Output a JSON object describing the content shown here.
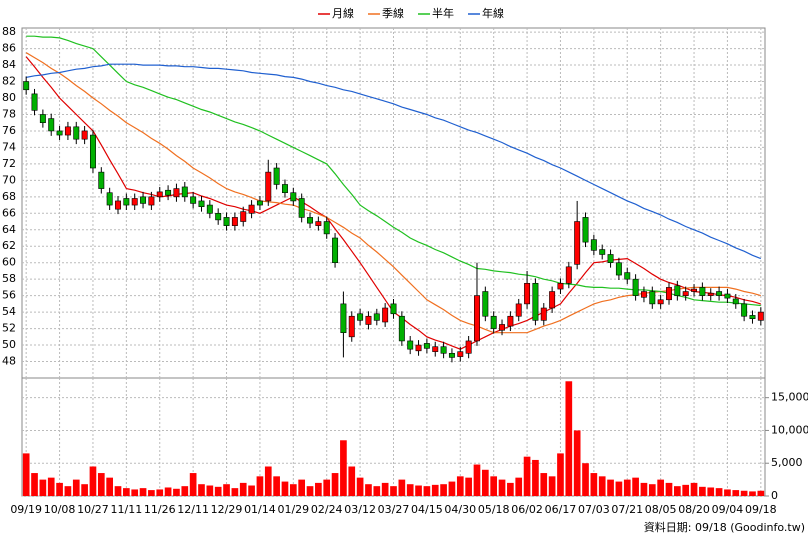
{
  "chart_data": {
    "type": "candlestick",
    "categories": [
      "09/19",
      null,
      null,
      null,
      "10/08",
      null,
      null,
      null,
      "10/27",
      null,
      null,
      null,
      "11/11",
      null,
      null,
      null,
      "11/26",
      null,
      null,
      null,
      "12/11",
      null,
      null,
      null,
      "12/29",
      null,
      null,
      null,
      "01/14",
      null,
      null,
      null,
      "01/29",
      null,
      null,
      null,
      "02/24",
      null,
      null,
      null,
      "03/12",
      null,
      null,
      null,
      "03/27",
      null,
      null,
      null,
      "04/15",
      null,
      null,
      null,
      "04/30",
      null,
      null,
      null,
      "05/18",
      null,
      null,
      null,
      "06/02",
      null,
      null,
      null,
      "06/17",
      null,
      null,
      null,
      "07/03",
      null,
      null,
      null,
      "07/21",
      null,
      null,
      null,
      "08/05",
      null,
      null,
      null,
      "08/20",
      null,
      null,
      null,
      "09/04",
      null,
      null,
      null,
      "09/18"
    ],
    "open": [
      82.0,
      80.5,
      78.0,
      77.5,
      76.0,
      75.5,
      76.5,
      75.0,
      75.5,
      71.0,
      68.5,
      66.5,
      67.8,
      67.0,
      68.0,
      67.0,
      68.0,
      68.8,
      68.0,
      69.2,
      68.0,
      67.5,
      67.0,
      66.0,
      65.5,
      64.5,
      65.0,
      66.0,
      67.5,
      67.5,
      71.5,
      69.5,
      68.5,
      67.8,
      65.5,
      64.5,
      65.0,
      63.0,
      55.0,
      51.0,
      53.8,
      52.5,
      53.8,
      52.8,
      55.0,
      53.5,
      50.5,
      49.3,
      50.2,
      49.2,
      49.8,
      49.0,
      48.6,
      49.0,
      50.5,
      56.5,
      53.5,
      51.8,
      52.3,
      53.5,
      55.0,
      57.5,
      53.0,
      54.5,
      56.8,
      57.5,
      59.8,
      65.5,
      62.8,
      61.6,
      61.0,
      60.0,
      58.8,
      58.0,
      55.8,
      56.5,
      55.0,
      55.5,
      57.2,
      56.0,
      56.5,
      57.0,
      56.0,
      56.5,
      56.2,
      55.6,
      55.0,
      53.6,
      53.0
    ],
    "high": [
      82.6,
      81.1,
      78.6,
      78.1,
      76.6,
      77.1,
      77.1,
      76.6,
      76.1,
      71.6,
      69.1,
      68.1,
      68.4,
      68.4,
      68.6,
      68.6,
      69.2,
      69.4,
      69.6,
      69.8,
      68.6,
      68.1,
      67.6,
      66.6,
      66.1,
      66.1,
      66.8,
      67.6,
      68.1,
      72.5,
      72.1,
      70.1,
      69.1,
      68.4,
      66.1,
      65.6,
      65.6,
      63.6,
      56.5,
      54.1,
      54.4,
      54.1,
      54.4,
      55.1,
      55.6,
      54.1,
      51.1,
      50.6,
      50.8,
      50.4,
      50.4,
      49.6,
      49.8,
      51.1,
      60.0,
      57.1,
      54.1,
      53.1,
      54.1,
      55.6,
      59.0,
      58.1,
      55.1,
      57.1,
      58.1,
      60.1,
      67.5,
      66.1,
      63.4,
      62.2,
      61.6,
      60.6,
      59.4,
      58.6,
      57.1,
      57.1,
      56.1,
      57.6,
      57.8,
      57.1,
      57.4,
      57.6,
      56.9,
      57.1,
      56.8,
      56.2,
      55.6,
      54.2,
      54.6
    ],
    "low": [
      80.4,
      77.9,
      76.4,
      75.4,
      74.9,
      74.9,
      74.4,
      74.4,
      70.9,
      68.4,
      66.4,
      65.9,
      66.4,
      66.4,
      66.6,
      66.4,
      67.4,
      67.6,
      67.4,
      67.4,
      66.6,
      66.2,
      65.4,
      64.6,
      63.9,
      63.9,
      64.4,
      65.4,
      66.4,
      66.9,
      68.9,
      67.9,
      66.9,
      64.9,
      64.2,
      63.9,
      62.9,
      59.4,
      48.5,
      50.4,
      52.4,
      51.9,
      52.4,
      52.2,
      53.2,
      49.9,
      48.9,
      48.7,
      49.0,
      48.6,
      48.4,
      47.9,
      48.0,
      48.4,
      49.9,
      52.9,
      51.4,
      51.2,
      51.7,
      52.9,
      54.4,
      52.4,
      52.4,
      53.9,
      56.2,
      56.9,
      59.2,
      61.9,
      60.9,
      60.4,
      59.4,
      57.9,
      57.4,
      55.4,
      55.2,
      54.4,
      54.4,
      54.9,
      55.4,
      55.4,
      55.9,
      55.4,
      55.4,
      55.4,
      55.1,
      54.4,
      52.9,
      52.6,
      52.4
    ],
    "close": [
      81.0,
      78.5,
      77.0,
      76.0,
      75.5,
      76.5,
      75.0,
      76.0,
      71.5,
      69.0,
      67.0,
      67.5,
      67.0,
      67.8,
      67.2,
      68.0,
      68.6,
      68.2,
      69.0,
      68.0,
      67.2,
      66.8,
      66.0,
      65.2,
      64.5,
      65.5,
      66.2,
      67.0,
      67.0,
      71.0,
      69.5,
      68.5,
      67.5,
      65.5,
      64.8,
      65.0,
      63.5,
      60.0,
      51.5,
      53.5,
      53.0,
      53.5,
      53.0,
      54.5,
      53.8,
      50.5,
      49.5,
      50.0,
      49.6,
      49.8,
      49.0,
      48.5,
      49.2,
      50.5,
      56.0,
      53.5,
      52.0,
      52.5,
      53.5,
      55.0,
      57.5,
      53.0,
      54.5,
      56.5,
      57.5,
      59.5,
      65.0,
      62.5,
      61.5,
      61.0,
      60.0,
      58.5,
      58.0,
      56.0,
      56.5,
      55.0,
      55.5,
      57.0,
      56.0,
      56.5,
      56.8,
      56.0,
      56.3,
      56.0,
      55.7,
      55.0,
      53.5,
      53.2,
      54.0
    ],
    "up_color": "#ff0000",
    "down_color": "#00b000",
    "series": [
      {
        "name": "月線",
        "color": "#e00000",
        "values": [
          85.0,
          83.8,
          82.5,
          81.3,
          80.0,
          79.0,
          78.0,
          77.0,
          76.0,
          74.3,
          72.5,
          70.8,
          69.0,
          68.8,
          68.5,
          68.3,
          68.0,
          68.1,
          68.3,
          68.4,
          68.5,
          68.1,
          67.8,
          67.4,
          67.0,
          66.8,
          66.5,
          66.3,
          66.0,
          66.5,
          67.0,
          67.5,
          68.0,
          67.4,
          66.8,
          66.1,
          65.5,
          64.1,
          62.8,
          61.4,
          60.0,
          58.5,
          57.0,
          55.5,
          54.0,
          53.3,
          52.5,
          51.8,
          51.0,
          50.6,
          50.3,
          49.9,
          49.5,
          50.0,
          50.5,
          51.0,
          51.5,
          51.9,
          52.3,
          52.6,
          53.0,
          53.5,
          54.0,
          54.5,
          55.0,
          56.3,
          57.5,
          58.8,
          60.0,
          60.1,
          60.3,
          60.4,
          60.5,
          59.9,
          59.3,
          58.6,
          58.0,
          57.6,
          57.3,
          56.9,
          56.5,
          56.4,
          56.3,
          56.1,
          56.0,
          55.8,
          55.5,
          55.3,
          55.0
        ]
      },
      {
        "name": "季線",
        "color": "#f07020",
        "values": [
          85.5,
          84.9,
          84.3,
          83.6,
          83.0,
          82.3,
          81.5,
          80.8,
          80.0,
          79.3,
          78.5,
          77.8,
          77.0,
          76.4,
          75.8,
          75.1,
          74.5,
          73.8,
          73.0,
          72.3,
          71.5,
          70.9,
          70.3,
          69.6,
          69.0,
          68.6,
          68.3,
          67.9,
          67.5,
          67.4,
          67.3,
          67.1,
          67.0,
          66.6,
          66.3,
          65.9,
          65.5,
          64.9,
          64.3,
          63.6,
          63.0,
          62.1,
          61.3,
          60.4,
          59.5,
          58.5,
          57.5,
          56.5,
          55.5,
          54.9,
          54.3,
          53.6,
          53.0,
          52.6,
          52.3,
          51.9,
          51.5,
          51.5,
          51.5,
          51.5,
          51.5,
          51.9,
          52.3,
          52.6,
          53.0,
          53.5,
          54.0,
          54.5,
          55.0,
          55.3,
          55.5,
          55.8,
          56.0,
          56.1,
          56.3,
          56.4,
          56.5,
          56.6,
          56.8,
          56.9,
          57.0,
          57.0,
          57.0,
          57.0,
          57.0,
          56.8,
          56.5,
          56.3,
          56.0
        ]
      },
      {
        "name": "半年",
        "color": "#20c020",
        "values": [
          87.5,
          87.5,
          87.4,
          87.4,
          87.3,
          87.0,
          86.6,
          86.3,
          86.0,
          85.0,
          84.0,
          83.0,
          82.0,
          81.6,
          81.3,
          80.9,
          80.5,
          80.1,
          79.8,
          79.4,
          79.0,
          78.6,
          78.3,
          77.9,
          77.5,
          77.1,
          76.8,
          76.4,
          76.0,
          75.5,
          75.0,
          74.5,
          74.0,
          73.5,
          73.0,
          72.5,
          72.0,
          70.8,
          69.5,
          68.3,
          67.0,
          66.3,
          65.7,
          65.0,
          64.3,
          63.7,
          63.0,
          62.5,
          62.1,
          61.6,
          61.2,
          60.7,
          60.2,
          59.8,
          59.3,
          59.2,
          59.0,
          58.9,
          58.8,
          58.6,
          58.5,
          58.3,
          58.0,
          57.8,
          57.5,
          57.4,
          57.3,
          57.1,
          57.0,
          57.0,
          56.9,
          56.9,
          56.8,
          56.7,
          56.7,
          56.6,
          56.5,
          56.3,
          56.0,
          55.8,
          55.5,
          55.4,
          55.3,
          55.2,
          55.2,
          55.1,
          55.0,
          54.9,
          54.8
        ]
      },
      {
        "name": "年線",
        "color": "#2060d0",
        "values": [
          82.5,
          82.7,
          82.8,
          83.0,
          83.1,
          83.3,
          83.5,
          83.6,
          83.8,
          83.9,
          84.1,
          84.1,
          84.1,
          84.1,
          84.0,
          84.0,
          84.0,
          83.9,
          83.9,
          83.8,
          83.8,
          83.7,
          83.6,
          83.6,
          83.5,
          83.4,
          83.3,
          83.1,
          83.0,
          82.9,
          82.8,
          82.6,
          82.5,
          82.3,
          82.0,
          81.8,
          81.5,
          81.3,
          81.0,
          80.8,
          80.5,
          80.2,
          79.9,
          79.6,
          79.3,
          78.9,
          78.6,
          78.3,
          78.0,
          77.6,
          77.3,
          76.9,
          76.5,
          76.1,
          75.8,
          75.4,
          75.0,
          74.6,
          74.1,
          73.7,
          73.3,
          72.8,
          72.4,
          71.9,
          71.5,
          71.0,
          70.5,
          70.0,
          69.5,
          69.0,
          68.5,
          68.0,
          67.5,
          67.1,
          66.6,
          66.2,
          65.8,
          65.3,
          64.9,
          64.4,
          64.0,
          63.6,
          63.1,
          62.7,
          62.3,
          61.8,
          61.4,
          60.9,
          60.5
        ]
      }
    ],
    "volume": {
      "color": "#ff0000",
      "ylim": [
        0,
        18000
      ],
      "yticks": [
        0,
        {
          "value": 5000,
          "label": "5,000"
        },
        {
          "value": 10000,
          "label": "10,000"
        },
        {
          "value": 15000,
          "label": "15,000"
        }
      ],
      "values": [
        6500,
        3500,
        2500,
        2800,
        2000,
        1500,
        2500,
        1800,
        4500,
        3500,
        2800,
        1500,
        1200,
        1000,
        1200,
        900,
        1000,
        1300,
        1100,
        1500,
        3500,
        1800,
        1600,
        1400,
        1800,
        1200,
        2000,
        1600,
        3000,
        4500,
        3000,
        2200,
        1800,
        2500,
        1500,
        2000,
        2500,
        3500,
        8500,
        4500,
        2800,
        1800,
        1500,
        2000,
        1500,
        2500,
        1800,
        1600,
        1500,
        1700,
        1800,
        2200,
        3000,
        2800,
        4800,
        4000,
        3000,
        2500,
        2000,
        2800,
        6000,
        5500,
        3500,
        3000,
        6500,
        17500,
        10000,
        5000,
        3500,
        3000,
        2500,
        2200,
        2500,
        2800,
        2000,
        1800,
        2500,
        2000,
        1500,
        1700,
        2000,
        1400,
        1300,
        1200,
        1000,
        900,
        800,
        700,
        800
      ]
    },
    "ylim": [
      46,
      88.5
    ],
    "yticks": [
      48,
      50,
      52,
      54,
      56,
      58,
      60,
      62,
      64,
      66,
      68,
      70,
      72,
      74,
      76,
      78,
      80,
      82,
      84,
      86,
      88
    ],
    "grid": true,
    "source": "資料日期: 09/18 (Goodinfo.tw)"
  }
}
